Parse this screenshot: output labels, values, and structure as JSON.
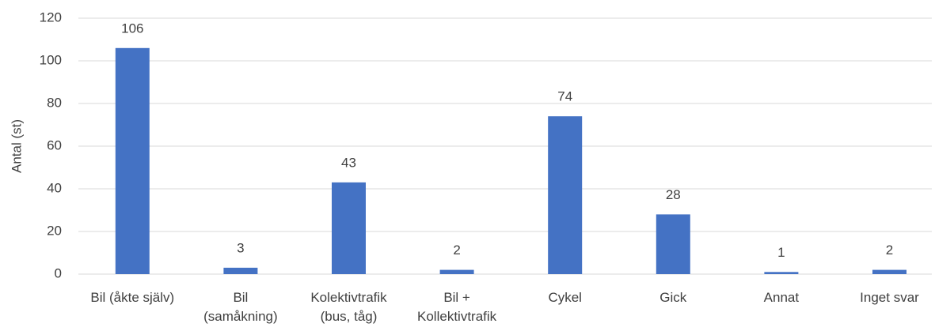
{
  "chart_data": {
    "type": "bar",
    "y_label": "Antal (st)",
    "categories": [
      [
        "Bil (åkte själv)"
      ],
      [
        "Bil",
        "(samåkning)"
      ],
      [
        "Kolektivtrafik",
        "(bus, tåg)"
      ],
      [
        "Bil +",
        "Kollektivtrafik"
      ],
      [
        "Cykel"
      ],
      [
        "Gick"
      ],
      [
        "Annat"
      ],
      [
        "Inget svar"
      ]
    ],
    "values": [
      106,
      3,
      43,
      2,
      74,
      28,
      1,
      2
    ],
    "color": "#4472c4",
    "ylim": [
      0,
      120
    ],
    "yticks": [
      0,
      20,
      40,
      60,
      80,
      100,
      120
    ],
    "grid": true
  }
}
